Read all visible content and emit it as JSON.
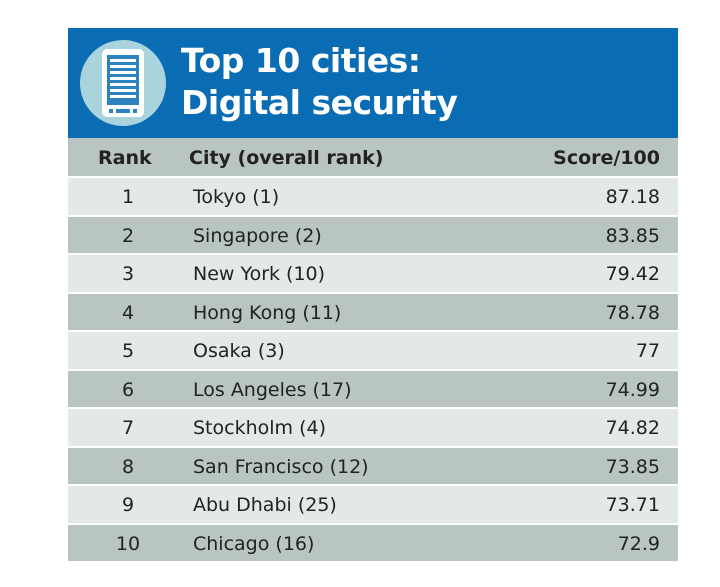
{
  "header": {
    "title_line1": "Top 10 cities:",
    "title_line2": "Digital security",
    "icon": "tablet-icon",
    "background_color": "#0a6db3",
    "icon_circle_color": "#a9d4dd"
  },
  "chart_data": {
    "type": "table",
    "title": "Top 10 cities: Digital security",
    "columns": [
      "Rank",
      "City (overall rank)",
      "Score/100"
    ],
    "rows": [
      {
        "rank": "1",
        "city": "Tokyo (1)",
        "score": "87.18"
      },
      {
        "rank": "2",
        "city": "Singapore (2)",
        "score": "83.85"
      },
      {
        "rank": "3",
        "city": "New York (10)",
        "score": "79.42"
      },
      {
        "rank": "4",
        "city": "Hong Kong (11)",
        "score": "78.78"
      },
      {
        "rank": "5",
        "city": "Osaka (3)",
        "score": "77"
      },
      {
        "rank": "6",
        "city": "Los Angeles (17)",
        "score": "74.99"
      },
      {
        "rank": "7",
        "city": "Stockholm (4)",
        "score": "74.82"
      },
      {
        "rank": "8",
        "city": "San Francisco (12)",
        "score": "73.85"
      },
      {
        "rank": "9",
        "city": "Abu Dhabi (25)",
        "score": "73.71"
      },
      {
        "rank": "10",
        "city": "Chicago (16)",
        "score": "72.9"
      }
    ],
    "row_colors": {
      "light": "#e2e9e7",
      "dark": "#b8c5c3"
    }
  }
}
